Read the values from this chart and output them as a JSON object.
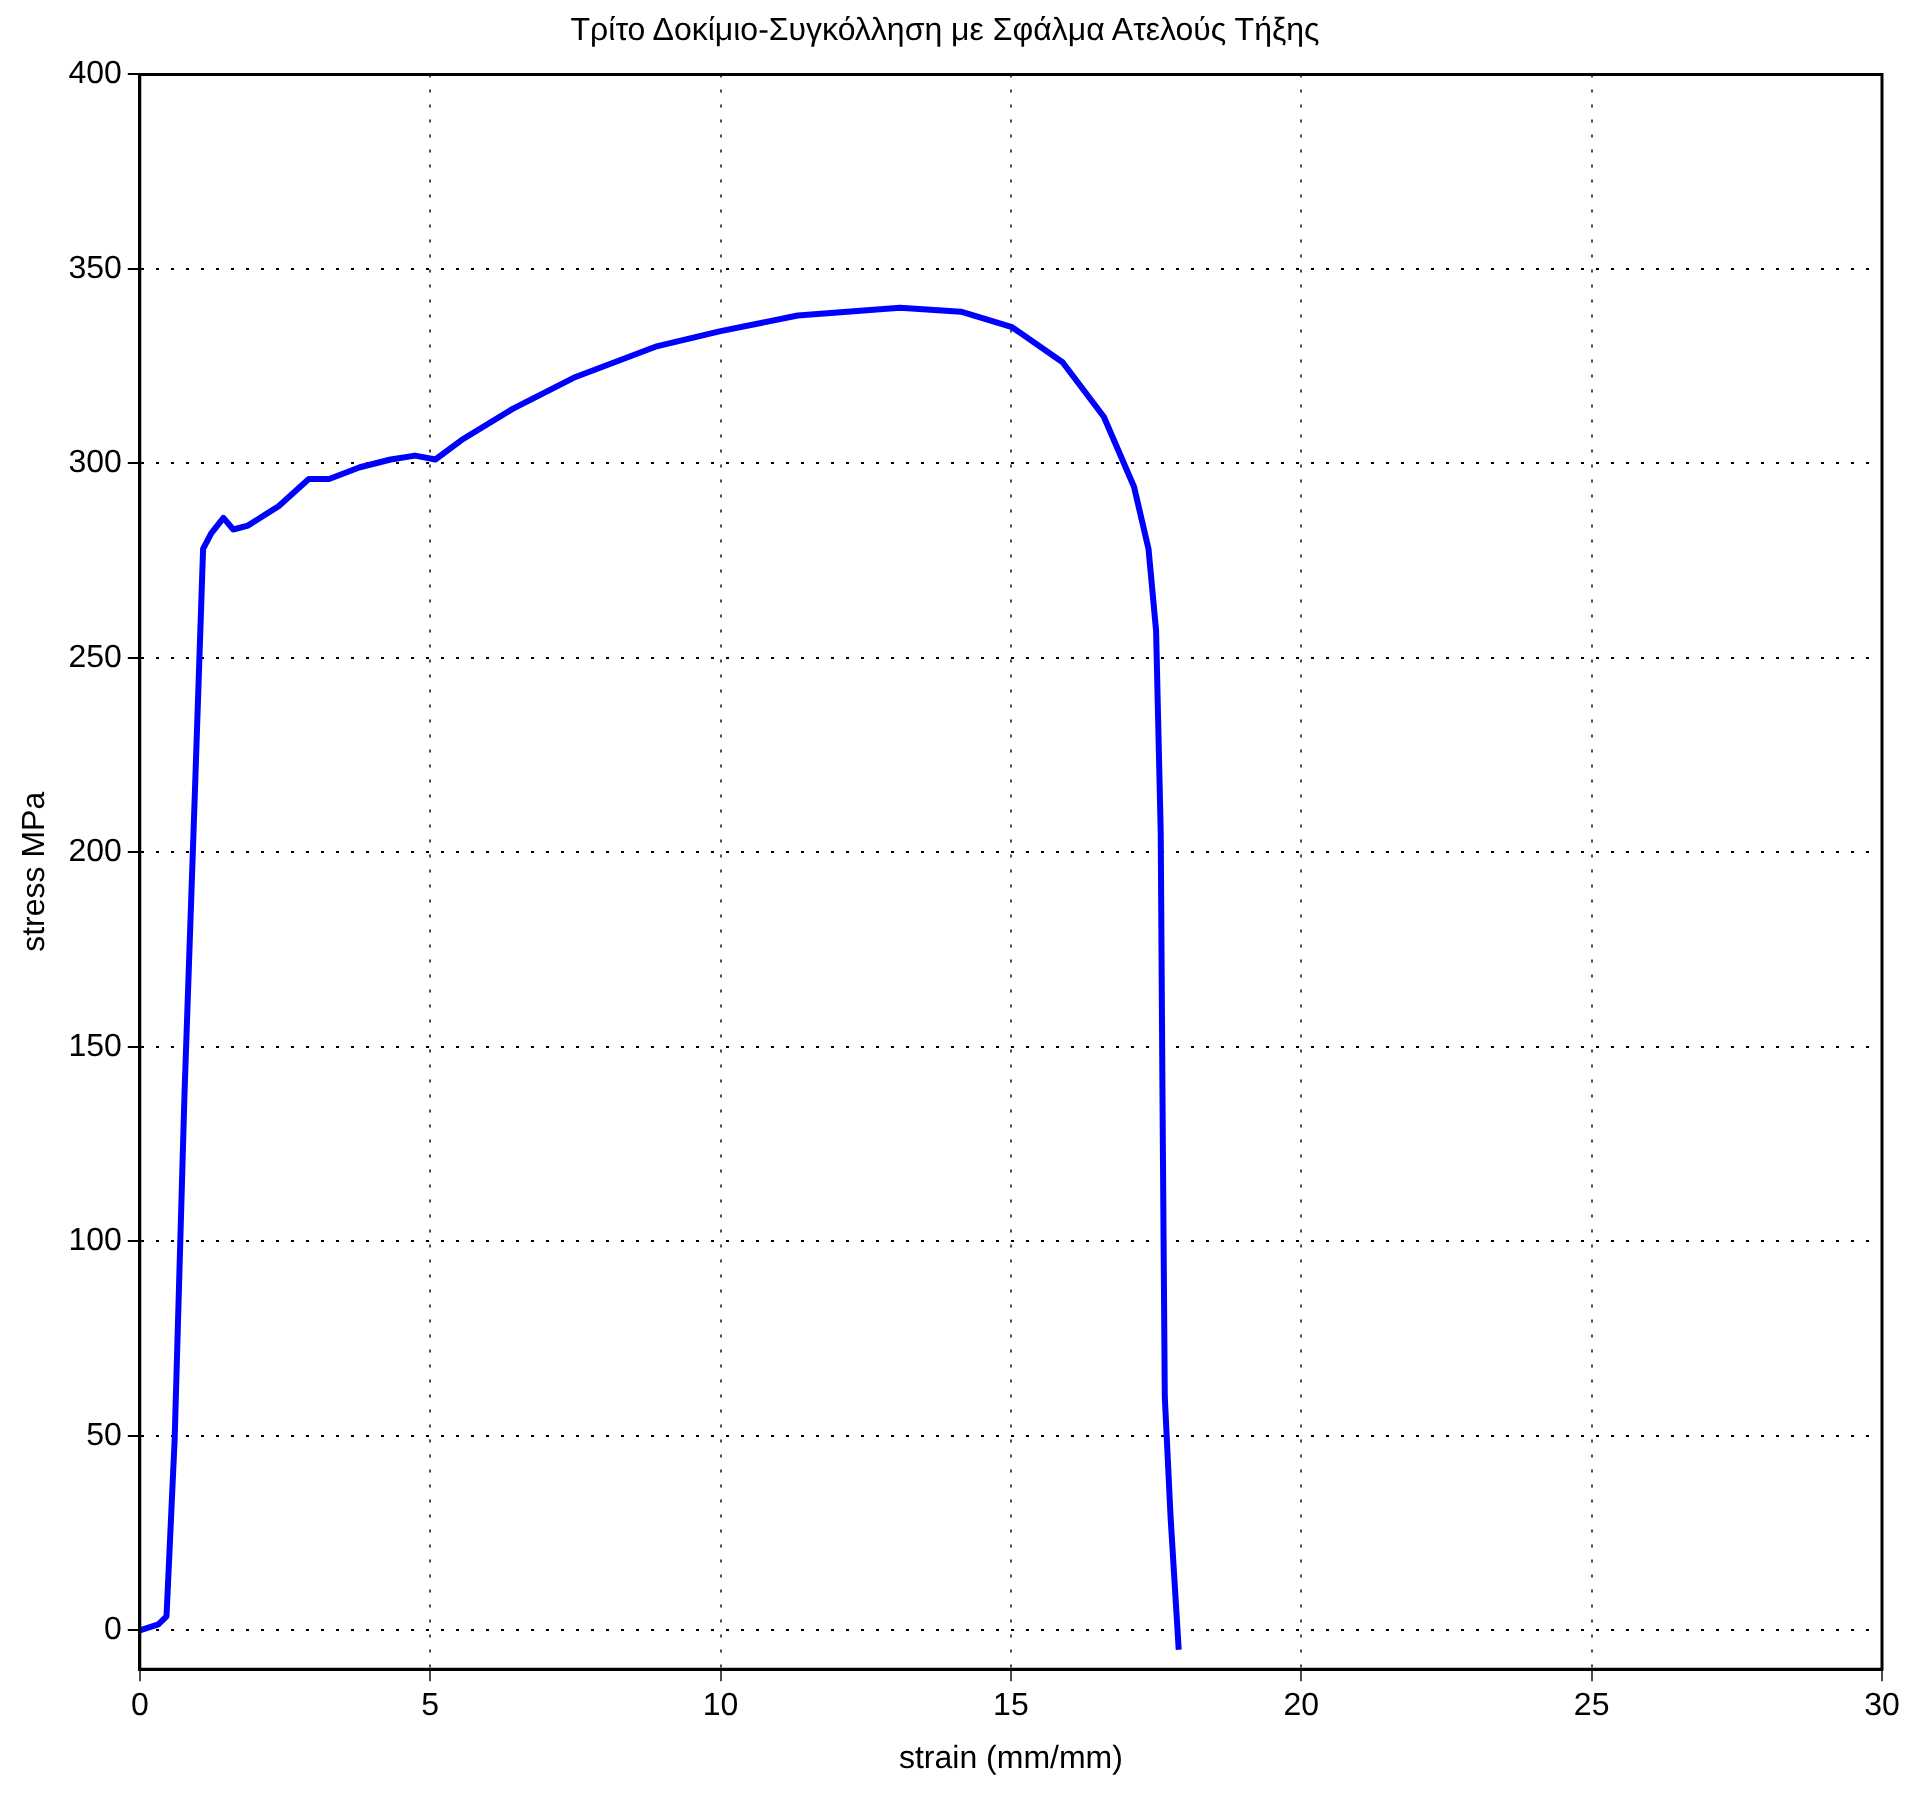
{
  "chart_data": {
    "type": "line",
    "title": "Τρίτο Δοκίμιο-Συγκόλληση με Σφάλμα Ατελούς Τήξης",
    "xlabel": "strain (mm/mm)",
    "ylabel": "stress MPa",
    "xlim": [
      0,
      30
    ],
    "xticks": [
      0,
      5,
      10,
      15,
      20,
      25,
      30
    ],
    "ylim": [
      -10,
      400
    ],
    "yticks": [
      0,
      50,
      100,
      150,
      200,
      250,
      300,
      350,
      400
    ],
    "grid": true,
    "marker": "none",
    "line_style": "solid",
    "series": [
      {
        "color": "#0000ff",
        "x": [
          0,
          0.32,
          0.46,
          0.6,
          0.77,
          0.95,
          1.09,
          1.23,
          1.44,
          1.61,
          1.86,
          2.39,
          2.91,
          3.26,
          3.79,
          4.32,
          4.74,
          5.09,
          5.54,
          6.42,
          7.47,
          8.88,
          10.0,
          11.33,
          13.09,
          14.14,
          15.02,
          15.89,
          16.6,
          17.12,
          17.37,
          17.5,
          17.58,
          17.61,
          17.65,
          17.75,
          17.89
        ],
        "values": [
          0,
          1.5,
          3.6,
          49,
          138,
          216,
          278,
          282,
          286,
          283,
          284,
          289,
          296,
          296,
          299,
          301,
          302,
          301,
          306,
          314,
          322,
          330,
          334,
          338,
          340,
          339,
          335,
          326,
          312,
          294,
          278,
          257,
          205,
          138,
          60,
          29,
          -5
        ]
      }
    ]
  }
}
